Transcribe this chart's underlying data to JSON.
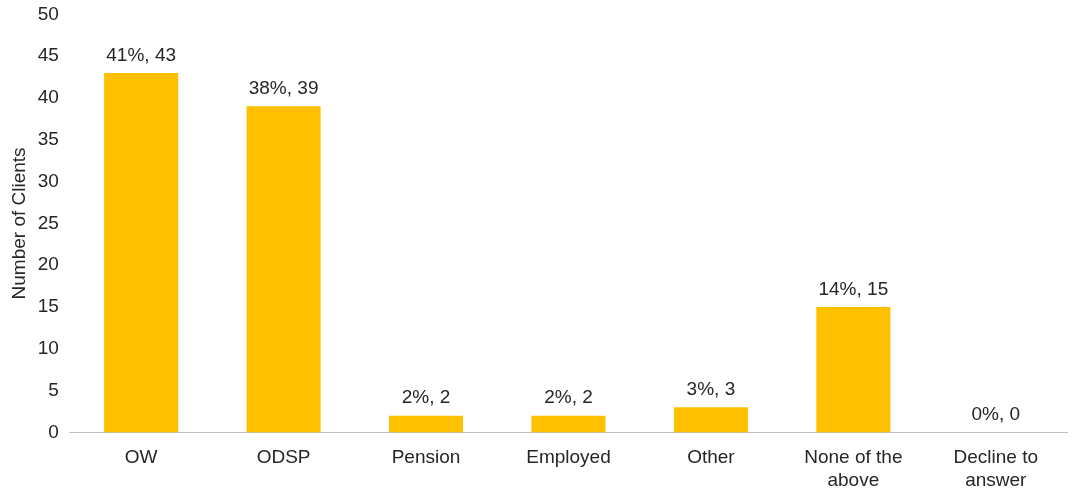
{
  "chart_data": {
    "type": "bar",
    "ylabel": "Number of Clients",
    "categories": [
      "OW",
      "ODSP",
      "Pension",
      "Employed",
      "Other",
      "None of the above",
      "Decline to answer"
    ],
    "values": [
      43,
      39,
      2,
      2,
      3,
      15,
      0
    ],
    "value_labels": [
      "41%, 43",
      "38%, 39",
      "2%, 2",
      "2%, 2",
      "3%, 3",
      "14%, 15",
      "0%, 0"
    ],
    "color": "#ffc000",
    "ylim": [
      0,
      50
    ],
    "yticks": [
      0,
      5,
      10,
      15,
      20,
      25,
      30,
      35,
      40,
      45,
      50
    ],
    "grid": false,
    "legend": false
  }
}
